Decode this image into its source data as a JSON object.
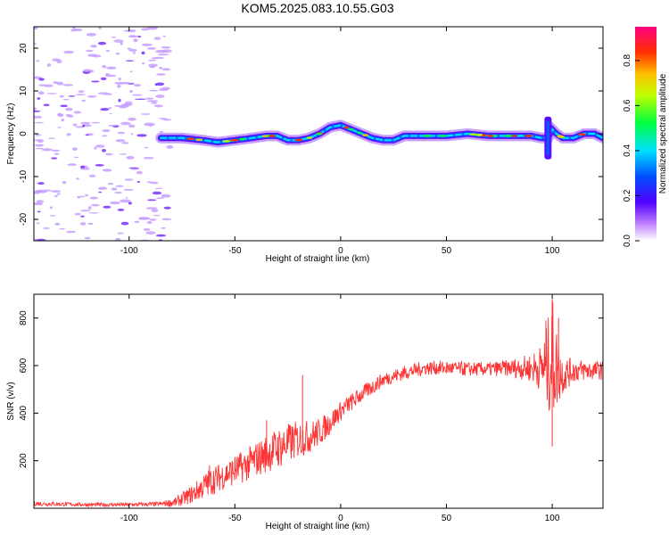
{
  "title": "KOM5.2025.083.10.55.G03",
  "chart_data": [
    {
      "type": "heatmap",
      "xlabel": "Height of straight line (km)",
      "ylabel": "Frequency (Hz)",
      "xlim": [
        -145,
        124
      ],
      "ylim": [
        -25,
        25
      ],
      "xticks": [
        -100,
        -50,
        0,
        50,
        100
      ],
      "yticks": [
        -20,
        -10,
        0,
        10,
        20
      ],
      "colorbar": {
        "label": "Normalized spectral amplitude",
        "range": [
          0,
          0.95
        ],
        "ticks": [
          0.0,
          0.2,
          0.4,
          0.6,
          0.8
        ],
        "colors": [
          "#ffffff",
          "#7a00ff",
          "#0040ff",
          "#00e0ff",
          "#00ff00",
          "#ffff00",
          "#ff8000",
          "#ff0000",
          "#ff0080"
        ]
      },
      "trace": {
        "x": [
          -85,
          -75,
          -65,
          -58,
          -50,
          -42,
          -35,
          -30,
          -25,
          -20,
          -15,
          -10,
          -5,
          0,
          5,
          10,
          15,
          20,
          25,
          30,
          40,
          50,
          60,
          70,
          80,
          90,
          95,
          98,
          100,
          102,
          105,
          110,
          115,
          120,
          124
        ],
        "freq": [
          -1,
          -1,
          -1.5,
          -2,
          -1.5,
          -1,
          -0.5,
          -0.5,
          -1.5,
          -1.5,
          -1,
          0,
          1.5,
          2,
          1,
          0,
          -1,
          -1.5,
          -1.5,
          -0.5,
          -0.5,
          -0.5,
          0,
          -0.5,
          -0.5,
          -0.5,
          -1,
          -1,
          1,
          0,
          -1,
          -1,
          0,
          0,
          -1
        ]
      },
      "noise_region_x": [
        -145,
        -80
      ]
    },
    {
      "type": "line",
      "xlabel": "Height of straight line (km)",
      "ylabel": "SNR (v/v)",
      "xlim": [
        -145,
        124
      ],
      "ylim": [
        0,
        900
      ],
      "xticks": [
        -100,
        -50,
        0,
        50,
        100
      ],
      "yticks": [
        200,
        400,
        600,
        800
      ],
      "series": [
        {
          "color": "#ff3333",
          "envelope_x": [
            -145,
            -120,
            -100,
            -85,
            -78,
            -70,
            -62,
            -55,
            -45,
            -35,
            -28,
            -20,
            -15,
            -10,
            -5,
            0,
            10,
            20,
            30,
            40,
            50,
            60,
            70,
            80,
            90,
            95,
            98,
            100,
            102,
            105,
            110,
            115,
            120,
            124
          ],
          "envelope_y": [
            20,
            15,
            15,
            18,
            25,
            60,
            110,
            140,
            180,
            230,
            260,
            290,
            300,
            320,
            360,
            410,
            480,
            540,
            570,
            590,
            590,
            585,
            585,
            590,
            590,
            590,
            600,
            640,
            590,
            560,
            580,
            580,
            580,
            580
          ],
          "envelope_amp": [
            10,
            8,
            8,
            10,
            20,
            40,
            60,
            60,
            70,
            80,
            90,
            80,
            70,
            60,
            50,
            40,
            35,
            30,
            30,
            30,
            30,
            30,
            30,
            35,
            60,
            100,
            200,
            260,
            180,
            80,
            50,
            45,
            40,
            40
          ],
          "spikes": [
            {
              "x": -18,
              "y": 560
            },
            {
              "x": -35,
              "y": 370
            },
            {
              "x": -62,
              "y": 180
            },
            {
              "x": 100,
              "y": 880
            },
            {
              "x": 100,
              "y": 260
            },
            {
              "x": 97,
              "y": 790
            },
            {
              "x": 103,
              "y": 800
            }
          ]
        }
      ]
    }
  ]
}
